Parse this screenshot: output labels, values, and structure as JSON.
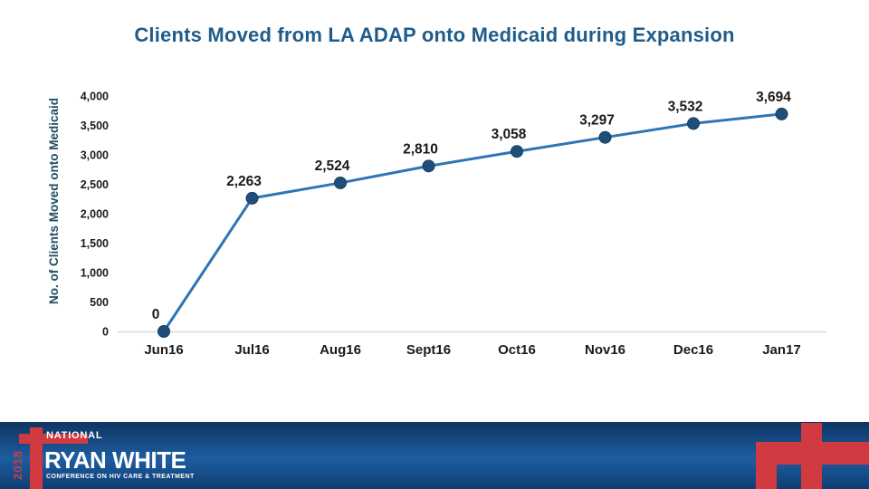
{
  "chart_data": {
    "type": "line",
    "title": "Clients Moved from LA ADAP onto Medicaid during Expansion",
    "ylabel": "No. of Clients Moved onto Medicaid",
    "xlabel": "",
    "categories": [
      "Jun16",
      "Jul16",
      "Aug16",
      "Sept16",
      "Oct16",
      "Nov16",
      "Dec16",
      "Jan17"
    ],
    "values": [
      0,
      2263,
      2524,
      2810,
      3058,
      3297,
      3532,
      3694
    ],
    "data_labels": [
      "0",
      "2,263",
      "2,524",
      "2,810",
      "3,058",
      "3,297",
      "3,532",
      "3,694"
    ],
    "ylim": [
      0,
      4000
    ],
    "ytick_step": 500,
    "ytick_labels": [
      "0",
      "500",
      "1,000",
      "1,500",
      "2,000",
      "2,500",
      "3,000",
      "3,500",
      "4,000"
    ],
    "grid": false,
    "legend": "none",
    "line_color": "#2E75B6",
    "marker_color": "#1F4E79"
  },
  "footer": {
    "year": "2018",
    "national": "NATIONAL",
    "brand": "RYAN WHITE",
    "tagline": "CONFERENCE ON HIV CARE & TREATMENT"
  },
  "colors": {
    "title_blue": "#1F5C8B",
    "ylabel_color": "#1F4E5F",
    "label_black": "#1A1A1A",
    "axis_gray": "#D9D9D9",
    "line_blue": "#2E75B6",
    "marker_navy": "#1F4E79",
    "logo_red": "#D13A40",
    "banner_blue_top": "#0E3463",
    "banner_blue_mid": "#1D5DA0",
    "banner_blue_bottom": "#0F3D72"
  }
}
